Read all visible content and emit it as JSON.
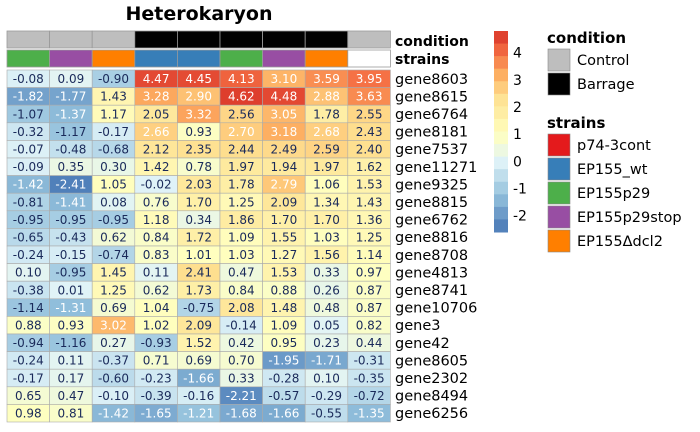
{
  "chart_data": {
    "type": "heatmap",
    "title": "Heterokaryon",
    "annotation_labels": {
      "condition": "condition",
      "strains": "strains"
    },
    "column_condition": [
      "Control",
      "Control",
      "Control",
      "Barrage",
      "Barrage",
      "Barrage",
      "Barrage",
      "Barrage",
      "Control"
    ],
    "column_strain": [
      "EP155p29",
      "EP155p29stop",
      "EP155Δdcl2",
      "EP155_wt",
      "EP155_wt",
      "EP155p29",
      "EP155p29stop",
      "EP155Δdcl2",
      "blank"
    ],
    "rows": [
      "gene8603",
      "gene8615",
      "gene6764",
      "gene8181",
      "gene7537",
      "gene11271",
      "gene9325",
      "gene8815",
      "gene6762",
      "gene8816",
      "gene8708",
      "gene4813",
      "gene8741",
      "gene10706",
      "gene3",
      "gene42",
      "gene8605",
      "gene2302",
      "gene8494",
      "gene6256"
    ],
    "values": [
      [
        -0.08,
        0.09,
        -0.9,
        4.47,
        4.45,
        4.13,
        3.1,
        3.59,
        3.95
      ],
      [
        -1.82,
        -1.77,
        1.43,
        3.28,
        2.9,
        4.62,
        4.48,
        2.88,
        3.63
      ],
      [
        -1.07,
        -1.37,
        1.17,
        2.05,
        3.32,
        2.56,
        3.05,
        1.78,
        2.55
      ],
      [
        -0.32,
        -1.17,
        -0.17,
        2.66,
        0.93,
        2.7,
        3.18,
        2.68,
        2.43
      ],
      [
        -0.07,
        -0.48,
        -0.68,
        2.12,
        2.35,
        2.44,
        2.49,
        2.59,
        2.4
      ],
      [
        -0.09,
        0.35,
        0.3,
        1.42,
        0.78,
        1.97,
        1.94,
        1.97,
        1.62
      ],
      [
        -1.42,
        -2.41,
        1.05,
        -0.02,
        2.03,
        1.78,
        2.79,
        1.06,
        1.53
      ],
      [
        -0.81,
        -1.41,
        0.08,
        0.76,
        1.7,
        1.25,
        2.09,
        1.34,
        1.43
      ],
      [
        -0.95,
        -0.95,
        -0.95,
        1.18,
        0.34,
        1.86,
        1.7,
        1.7,
        1.36
      ],
      [
        -0.65,
        -0.43,
        0.62,
        0.84,
        1.72,
        1.09,
        1.55,
        1.03,
        1.25
      ],
      [
        -0.24,
        -0.15,
        -0.74,
        0.83,
        1.01,
        1.03,
        1.27,
        1.56,
        1.14
      ],
      [
        0.1,
        -0.95,
        1.45,
        0.11,
        2.41,
        0.47,
        1.53,
        0.33,
        0.97
      ],
      [
        -0.38,
        0.01,
        1.25,
        0.62,
        1.73,
        0.84,
        0.88,
        0.26,
        0.87
      ],
      [
        -1.14,
        -1.31,
        0.69,
        1.04,
        -0.75,
        2.08,
        1.48,
        0.48,
        0.87
      ],
      [
        0.88,
        0.93,
        3.02,
        1.02,
        2.09,
        -0.14,
        1.09,
        0.05,
        0.82
      ],
      [
        -0.94,
        -1.16,
        0.27,
        -0.93,
        1.52,
        0.42,
        0.95,
        0.23,
        0.44
      ],
      [
        -0.24,
        0.11,
        -0.37,
        0.71,
        0.69,
        0.7,
        -1.95,
        -1.71,
        -0.31
      ],
      [
        -0.17,
        0.17,
        -0.6,
        -0.23,
        -1.66,
        0.33,
        -0.28,
        0.1,
        -0.35
      ],
      [
        0.65,
        0.47,
        -0.1,
        -0.39,
        -0.16,
        -2.21,
        -0.57,
        -0.29,
        -0.72
      ],
      [
        0.98,
        0.81,
        -1.42,
        -1.65,
        -1.21,
        -1.68,
        -1.66,
        -0.55,
        -1.35
      ]
    ],
    "colorbar": {
      "ticks": [
        "4",
        "3",
        "2",
        "1",
        "0",
        "-1",
        "-2"
      ],
      "tick_values": [
        4,
        3,
        2,
        1,
        0,
        -1,
        -2
      ],
      "range": [
        -2.6,
        4.8
      ]
    },
    "legend": {
      "condition": {
        "title": "condition",
        "items": [
          {
            "label": "Control",
            "color": "#bebebe"
          },
          {
            "label": "Barrage",
            "color": "#000000"
          }
        ]
      },
      "strains": {
        "title": "strains",
        "items": [
          {
            "label": "p74-3cont",
            "color": "#e41a1c"
          },
          {
            "label": "EP155_wt",
            "color": "#377eb8"
          },
          {
            "label": "EP155p29",
            "color": "#4daf4a"
          },
          {
            "label": "EP155p29stop",
            "color": "#984ea3"
          },
          {
            "label": "EP155Δdcl2",
            "color": "#ff7f00"
          }
        ]
      }
    },
    "strain_colors": {
      "p74-3cont": "#e41a1c",
      "EP155_wt": "#377eb8",
      "EP155p29": "#4daf4a",
      "EP155p29stop": "#984ea3",
      "EP155Δdcl2": "#ff7f00",
      "blank": "#ffffff"
    },
    "condition_colors": {
      "Control": "#bebebe",
      "Barrage": "#000000"
    }
  }
}
